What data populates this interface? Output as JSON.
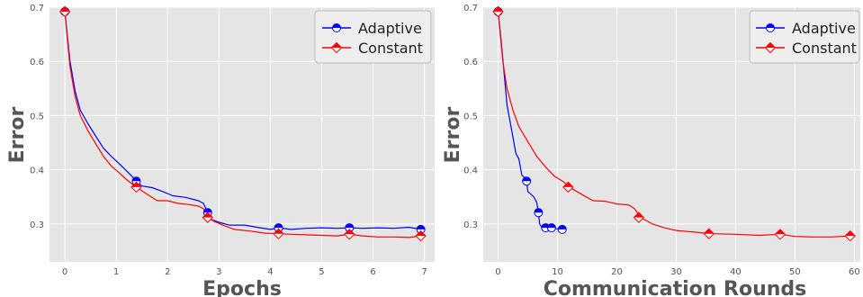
{
  "chart_data": [
    {
      "type": "line",
      "xlabel": "Epochs",
      "ylabel": "Error",
      "xlim": [
        -0.3,
        7.2
      ],
      "ylim": [
        0.23,
        0.7
      ],
      "xticks": [
        0,
        1,
        2,
        3,
        4,
        5,
        6,
        7
      ],
      "yticks": [
        0.3,
        0.4,
        0.5,
        0.6,
        0.7
      ],
      "grid": true,
      "legend_position": "top-right",
      "series": [
        {
          "name": "Adaptive",
          "color": "#0000ff",
          "marker": "half-filled circle",
          "x": [
            0,
            0.1,
            0.2,
            0.3,
            0.45,
            0.6,
            0.75,
            0.9,
            1.05,
            1.2,
            1.39,
            1.5,
            1.7,
            1.9,
            2.1,
            2.35,
            2.6,
            2.7,
            2.78,
            2.85,
            3.0,
            3.2,
            3.5,
            3.8,
            4.0,
            4.16,
            4.4,
            4.7,
            5.0,
            5.3,
            5.54,
            5.8,
            6.1,
            6.4,
            6.7,
            6.93
          ],
          "y": [
            0.692,
            0.6,
            0.545,
            0.51,
            0.485,
            0.462,
            0.44,
            0.425,
            0.412,
            0.398,
            0.38,
            0.37,
            0.367,
            0.36,
            0.352,
            0.349,
            0.343,
            0.338,
            0.321,
            0.308,
            0.303,
            0.298,
            0.298,
            0.293,
            0.29,
            0.293,
            0.29,
            0.292,
            0.293,
            0.292,
            0.293,
            0.292,
            0.293,
            0.292,
            0.294,
            0.29
          ],
          "marker_x": [
            0,
            1.39,
            2.78,
            4.16,
            5.54,
            6.93
          ],
          "marker_y": [
            0.692,
            0.379,
            0.321,
            0.293,
            0.293,
            0.29
          ]
        },
        {
          "name": "Constant",
          "color": "#ff0000",
          "marker": "half-filled diamond",
          "x": [
            0,
            0.1,
            0.2,
            0.3,
            0.45,
            0.6,
            0.75,
            0.9,
            1.05,
            1.2,
            1.39,
            1.6,
            1.8,
            2.0,
            2.2,
            2.4,
            2.6,
            2.7,
            2.78,
            2.9,
            3.1,
            3.3,
            3.6,
            3.9,
            4.16,
            4.4,
            4.7,
            5.0,
            5.3,
            5.54,
            5.8,
            6.1,
            6.4,
            6.7,
            6.93
          ],
          "y": [
            0.692,
            0.59,
            0.535,
            0.5,
            0.472,
            0.448,
            0.425,
            0.407,
            0.395,
            0.382,
            0.368,
            0.355,
            0.343,
            0.343,
            0.338,
            0.336,
            0.333,
            0.328,
            0.312,
            0.305,
            0.297,
            0.29,
            0.287,
            0.283,
            0.282,
            0.281,
            0.28,
            0.279,
            0.278,
            0.281,
            0.278,
            0.276,
            0.276,
            0.275,
            0.278
          ],
          "marker_x": [
            0,
            1.39,
            2.78,
            4.16,
            5.54,
            6.93
          ],
          "marker_y": [
            0.692,
            0.368,
            0.312,
            0.282,
            0.281,
            0.278
          ]
        }
      ]
    },
    {
      "type": "line",
      "xlabel": "Communication Rounds",
      "ylabel": "Error",
      "xlim": [
        -2.5,
        61
      ],
      "ylim": [
        0.23,
        0.7
      ],
      "xticks": [
        0,
        10,
        20,
        30,
        40,
        50,
        60
      ],
      "yticks": [
        0.3,
        0.4,
        0.5,
        0.6,
        0.7
      ],
      "grid": true,
      "legend_position": "top-right",
      "series": [
        {
          "name": "Adaptive",
          "color": "#0000ff",
          "marker": "half-filled circle",
          "x": [
            0,
            0.5,
            1,
            1.5,
            2,
            2.5,
            3,
            3.5,
            4,
            4.5,
            4.8,
            5,
            5.5,
            6,
            6.5,
            6.8,
            7,
            7.3,
            7.6,
            8,
            8.5,
            9,
            9.5,
            10,
            10.5,
            11
          ],
          "y": [
            0.692,
            0.64,
            0.58,
            0.52,
            0.49,
            0.46,
            0.43,
            0.42,
            0.39,
            0.385,
            0.379,
            0.36,
            0.355,
            0.35,
            0.34,
            0.321,
            0.3,
            0.295,
            0.293,
            0.293,
            0.292,
            0.293,
            0.292,
            0.291,
            0.292,
            0.29
          ],
          "marker_x": [
            0,
            4.8,
            6.8,
            8,
            9,
            10.8
          ],
          "marker_y": [
            0.692,
            0.379,
            0.321,
            0.293,
            0.293,
            0.29
          ]
        },
        {
          "name": "Constant",
          "color": "#ff0000",
          "marker": "half-filled diamond",
          "x": [
            0,
            0.8,
            1.5,
            2.5,
            3.5,
            5,
            6.5,
            8,
            9.5,
            11,
            12,
            14,
            16,
            18,
            20,
            22,
            23,
            24,
            26,
            28,
            30,
            33,
            36,
            40,
            44,
            47.5,
            50,
            53,
            56,
            59.5
          ],
          "y": [
            0.692,
            0.6,
            0.55,
            0.51,
            0.48,
            0.452,
            0.425,
            0.405,
            0.388,
            0.378,
            0.368,
            0.355,
            0.343,
            0.342,
            0.337,
            0.335,
            0.328,
            0.312,
            0.3,
            0.293,
            0.288,
            0.285,
            0.282,
            0.281,
            0.279,
            0.281,
            0.277,
            0.276,
            0.276,
            0.278
          ],
          "marker_x": [
            0,
            11.8,
            23.7,
            35.5,
            47.5,
            59.3
          ],
          "marker_y": [
            0.692,
            0.368,
            0.312,
            0.282,
            0.281,
            0.278
          ]
        }
      ]
    }
  ]
}
